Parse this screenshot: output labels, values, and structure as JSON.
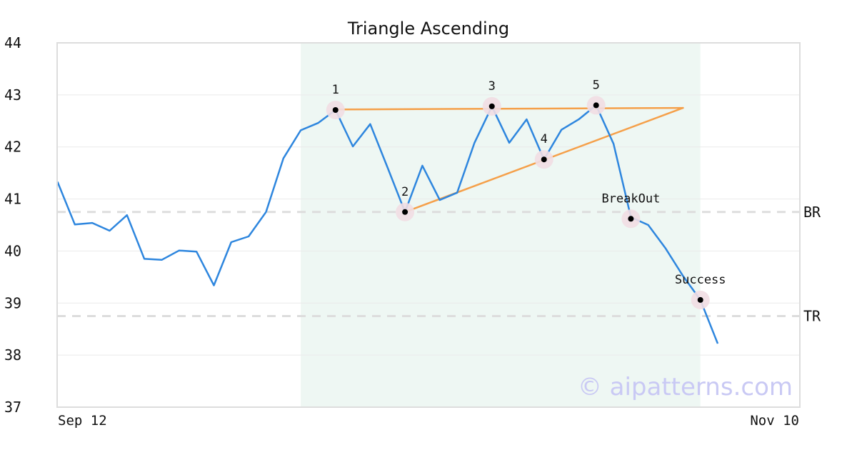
{
  "chart_data": {
    "type": "line",
    "title": "Triangle Ascending",
    "xlabel": "",
    "ylabel": "",
    "ylim": [
      37,
      44
    ],
    "yticks": [
      37,
      38,
      39,
      40,
      41,
      42,
      43,
      44
    ],
    "xtick_labels": [
      "Sep 12",
      "Nov 10"
    ],
    "grid": "horizontal",
    "series": [
      {
        "values": [
          41.33,
          40.51,
          40.54,
          40.39,
          40.69,
          39.85,
          39.83,
          40.01,
          39.99,
          39.34,
          40.17,
          40.28,
          40.75,
          41.78,
          42.32,
          42.46,
          42.71,
          42.01,
          42.44,
          41.6,
          40.75,
          41.64,
          40.98,
          41.12,
          42.08,
          42.78,
          42.08,
          42.53,
          41.76,
          42.33,
          42.53,
          42.8,
          42.06,
          40.65,
          40.5,
          40.05,
          39.52,
          39.06,
          38.22
        ]
      }
    ],
    "highlight_region": {
      "x_start_index": 14,
      "x_end_index": 37,
      "color": "#eef7f3"
    },
    "reference_lines": [
      {
        "label": "BR",
        "value": 40.75
      },
      {
        "label": "TR",
        "value": 38.75
      }
    ],
    "pattern_lines": [
      {
        "from": {
          "x_index": 16,
          "y": 42.72
        },
        "to": {
          "x_index": 36,
          "y": 42.75
        }
      },
      {
        "from": {
          "x_index": 20,
          "y": 40.75
        },
        "to": {
          "x_index": 36,
          "y": 42.75
        }
      }
    ],
    "points": [
      {
        "label": "1",
        "x_index": 16,
        "y": 42.71
      },
      {
        "label": "2",
        "x_index": 20,
        "y": 40.75
      },
      {
        "label": "3",
        "x_index": 25,
        "y": 42.78
      },
      {
        "label": "4",
        "x_index": 28,
        "y": 41.76
      },
      {
        "label": "5",
        "x_index": 31,
        "y": 42.8
      },
      {
        "label": "BreakOut",
        "x_index": 33,
        "y": 40.62
      },
      {
        "label": "Success",
        "x_index": 37,
        "y": 39.06
      }
    ],
    "colors": {
      "line": "#2e86de",
      "pattern": "#f5a04a",
      "reference": "#dddddd",
      "marker_halo": "#f1dde3",
      "grid": "#eaeaea",
      "frame": "#dddddd"
    },
    "watermark": "© aipatterns.com",
    "watermark_color": "#c9c9f4"
  }
}
